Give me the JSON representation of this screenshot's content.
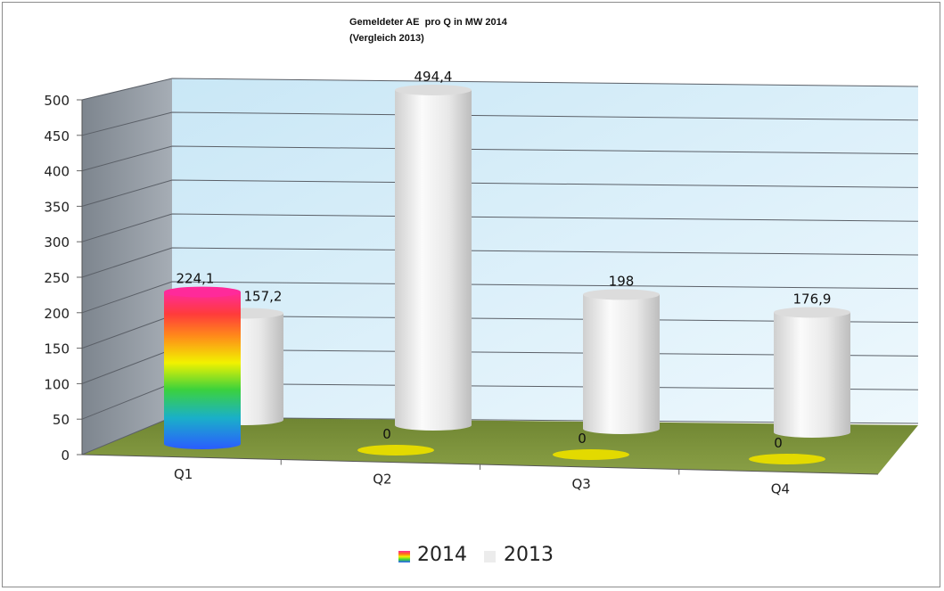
{
  "chart_data": {
    "type": "bar",
    "title": "Gemeldeter AE  pro Q in MW 2014",
    "subtitle": "(Vergleich 2013)",
    "categories": [
      "Q1",
      "Q2",
      "Q3",
      "Q4"
    ],
    "series": [
      {
        "name": "2014",
        "values": [
          224.1,
          0,
          0,
          0
        ],
        "labels": [
          "224,1",
          "0",
          "0",
          "0"
        ]
      },
      {
        "name": "2013",
        "values": [
          157.2,
          494.4,
          198,
          176.9
        ],
        "labels": [
          "157,2",
          "494,4",
          "198",
          "176,9"
        ]
      }
    ],
    "ylim": [
      0,
      500
    ],
    "yticks": [
      "0",
      "50",
      "100",
      "150",
      "200",
      "250",
      "300",
      "350",
      "400",
      "450",
      "500"
    ],
    "grid": true,
    "legend_position": "bottom",
    "style": "3d-cylinder"
  },
  "colors": {
    "back_wall": "#d9eef9",
    "side_wall": "#8a929c",
    "floor": "#7a8f3b",
    "series_2013": "#ececec",
    "zero_disc": "#e3da00"
  }
}
